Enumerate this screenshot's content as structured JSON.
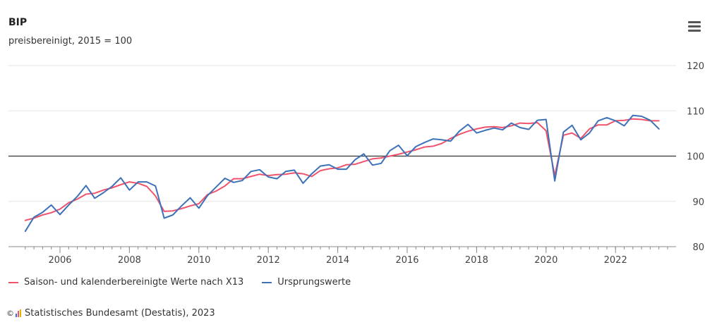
{
  "colors": {
    "seasonal": "#f0536b",
    "original": "#3d71b8",
    "reference_line": "#333333",
    "grid": "#e6e6e6"
  },
  "menu_icon": "hamburger-icon",
  "credit": "Statistisches Bundesamt (Destatis), 2023",
  "chart_data": {
    "type": "line",
    "title": "BIP",
    "subtitle": "preisbereinigt, 2015 = 100",
    "xlabel": "",
    "ylabel": "",
    "x_ticks": [
      2006,
      2008,
      2010,
      2012,
      2014,
      2016,
      2018,
      2020,
      2022
    ],
    "y_ticks": [
      80,
      90,
      100,
      110,
      120
    ],
    "xlim": [
      "2005-Q1",
      "2023-Q2"
    ],
    "ylim": [
      80,
      120
    ],
    "reference_line": 100,
    "grid": true,
    "legend_position": "bottom-left",
    "x": [
      "2005-Q1",
      "2005-Q2",
      "2005-Q3",
      "2005-Q4",
      "2006-Q1",
      "2006-Q2",
      "2006-Q3",
      "2006-Q4",
      "2007-Q1",
      "2007-Q2",
      "2007-Q3",
      "2007-Q4",
      "2008-Q1",
      "2008-Q2",
      "2008-Q3",
      "2008-Q4",
      "2009-Q1",
      "2009-Q2",
      "2009-Q3",
      "2009-Q4",
      "2010-Q1",
      "2010-Q2",
      "2010-Q3",
      "2010-Q4",
      "2011-Q1",
      "2011-Q2",
      "2011-Q3",
      "2011-Q4",
      "2012-Q1",
      "2012-Q2",
      "2012-Q3",
      "2012-Q4",
      "2013-Q1",
      "2013-Q2",
      "2013-Q3",
      "2013-Q4",
      "2014-Q1",
      "2014-Q2",
      "2014-Q3",
      "2014-Q4",
      "2015-Q1",
      "2015-Q2",
      "2015-Q3",
      "2015-Q4",
      "2016-Q1",
      "2016-Q2",
      "2016-Q3",
      "2016-Q4",
      "2017-Q1",
      "2017-Q2",
      "2017-Q3",
      "2017-Q4",
      "2018-Q1",
      "2018-Q2",
      "2018-Q3",
      "2018-Q4",
      "2019-Q1",
      "2019-Q2",
      "2019-Q3",
      "2019-Q4",
      "2020-Q1",
      "2020-Q2",
      "2020-Q3",
      "2020-Q4",
      "2021-Q1",
      "2021-Q2",
      "2021-Q3",
      "2021-Q4",
      "2022-Q1",
      "2022-Q2",
      "2022-Q3",
      "2022-Q4",
      "2023-Q1",
      "2023-Q2"
    ],
    "series": [
      {
        "name": "Saison- und kalenderbereinigte Werte nach X13",
        "color": "#f0536b",
        "values": [
          85.8,
          86.3,
          87.0,
          87.5,
          88.3,
          89.7,
          90.5,
          91.6,
          91.8,
          92.5,
          93.0,
          93.7,
          94.3,
          94.0,
          93.3,
          91.2,
          87.8,
          87.9,
          88.4,
          89.0,
          89.5,
          91.5,
          92.3,
          93.4,
          95.0,
          95.0,
          95.5,
          96.0,
          95.7,
          95.9,
          96.0,
          96.3,
          96.1,
          95.5,
          96.8,
          97.2,
          97.4,
          98.1,
          98.2,
          98.8,
          99.4,
          99.6,
          100.0,
          100.4,
          100.9,
          101.4,
          102.0,
          102.2,
          102.8,
          103.9,
          104.8,
          105.5,
          106.0,
          106.4,
          106.5,
          106.3,
          106.7,
          107.3,
          107.2,
          107.4,
          105.6,
          95.7,
          104.6,
          105.1,
          103.9,
          106.0,
          106.9,
          106.9,
          107.8,
          107.9,
          108.2,
          108.1,
          107.8,
          107.8
        ]
      },
      {
        "name": "Ursprungswerte",
        "color": "#3d71b8",
        "values": [
          83.4,
          86.5,
          87.6,
          89.2,
          87.1,
          89.2,
          91.1,
          93.5,
          90.7,
          91.9,
          93.3,
          95.2,
          92.5,
          94.3,
          94.3,
          93.4,
          86.3,
          87.0,
          89.0,
          90.8,
          88.5,
          91.3,
          93.2,
          95.1,
          94.2,
          94.6,
          96.6,
          97.0,
          95.4,
          95.0,
          96.6,
          96.9,
          94.0,
          96.1,
          97.8,
          98.1,
          97.1,
          97.1,
          99.2,
          100.5,
          98.0,
          98.4,
          101.2,
          102.4,
          100.1,
          102.1,
          103.0,
          103.8,
          103.6,
          103.3,
          105.5,
          107.0,
          105.1,
          105.7,
          106.2,
          105.8,
          107.3,
          106.3,
          105.9,
          107.9,
          108.1,
          94.5,
          105.3,
          106.8,
          103.6,
          105.1,
          107.8,
          108.5,
          107.8,
          106.7,
          109.0,
          108.8,
          107.9,
          106.0
        ]
      }
    ]
  }
}
